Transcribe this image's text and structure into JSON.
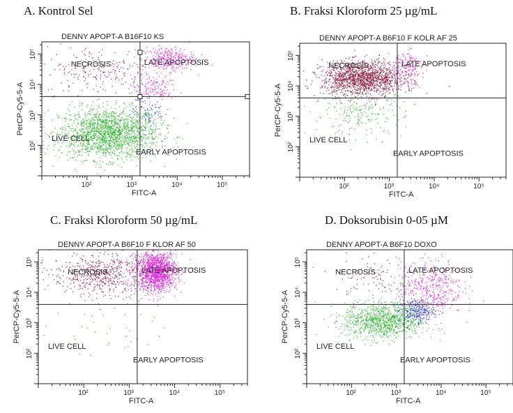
{
  "colors": {
    "live": "#22b322",
    "necrosis": "#8b1a3c",
    "late": "#e01ee0",
    "early": "#2a3fd6",
    "frame": "#222222",
    "text": "#222222"
  },
  "chart_data": [
    {
      "type": "scatter",
      "heading": "A.  Kontrol Sel",
      "title": "DENNY APOPT-A B16F10 KS",
      "xlabel": "FITC-A",
      "ylabel": "PerCP-Cy5-5-A",
      "x_scale": "log",
      "y_scale": "log",
      "xlim": [
        10,
        400000
      ],
      "ylim": [
        10,
        250000
      ],
      "x_ticks": [
        {
          "value": 100,
          "label": "10²"
        },
        {
          "value": 1000,
          "label": "10³"
        },
        {
          "value": 10000,
          "label": "10⁴"
        },
        {
          "value": 100000,
          "label": "10⁵"
        }
      ],
      "y_ticks": [
        {
          "value": 100,
          "label": "10²"
        },
        {
          "value": 1000,
          "label": "10³"
        },
        {
          "value": 10000,
          "label": "10⁴"
        },
        {
          "value": 100000,
          "label": "10⁵"
        }
      ],
      "gate": {
        "x": 1500,
        "y": 4000
      },
      "gate_markers": true,
      "quadrant_labels": {
        "necrosis": "NECROSIS",
        "late": "LATE APOPTOSIS",
        "live": "LIVE CELL",
        "early": "EARLY APOPTOSIS"
      },
      "populations": [
        {
          "quadrant": "live",
          "n": 1700,
          "x_center": 300,
          "y_center": 250,
          "x_spread": 0.55,
          "y_spread": 0.42
        },
        {
          "quadrant": "necrosis",
          "n": 220,
          "x_center": 180,
          "y_center": 30000,
          "x_spread": 0.6,
          "y_spread": 0.4
        },
        {
          "quadrant": "late",
          "n": 300,
          "x_center": 6000,
          "y_center": 70000,
          "x_spread": 0.3,
          "y_spread": 0.2
        },
        {
          "quadrant": "late",
          "n": 120,
          "x_center": 3000,
          "y_center": 8000,
          "x_spread": 0.25,
          "y_spread": 0.2
        },
        {
          "quadrant": "early",
          "n": 90,
          "x_center": 2200,
          "y_center": 1500,
          "x_spread": 0.18,
          "y_spread": 0.3
        }
      ]
    },
    {
      "type": "scatter",
      "heading": "B. Fraksi Kloroform 25 µg/mL",
      "title": "DENNY APOPT-A B6F10 F KOLR AF 25",
      "xlabel": "FITC-A",
      "ylabel": "PerCP-Cy5-5-A",
      "x_scale": "log",
      "y_scale": "log",
      "xlim": [
        10,
        400000
      ],
      "ylim": [
        10,
        250000
      ],
      "x_ticks": [
        {
          "value": 100,
          "label": "10²"
        },
        {
          "value": 1000,
          "label": "10³"
        },
        {
          "value": 10000,
          "label": "10⁴"
        },
        {
          "value": 100000,
          "label": "10⁵"
        }
      ],
      "y_ticks": [
        {
          "value": 100,
          "label": "10²"
        },
        {
          "value": 1000,
          "label": "10³"
        },
        {
          "value": 10000,
          "label": "10⁴"
        },
        {
          "value": 100000,
          "label": "10⁵"
        }
      ],
      "gate": {
        "x": 1500,
        "y": 4000
      },
      "gate_markers": false,
      "quadrant_labels": {
        "necrosis": "NECROSIS",
        "late": "LATE APOPTOSIS",
        "live": "LIVE CELL",
        "early": "EARLY APOPTOSIS"
      },
      "populations": [
        {
          "quadrant": "necrosis",
          "n": 1500,
          "x_center": 250,
          "y_center": 18000,
          "x_spread": 0.45,
          "y_spread": 0.28
        },
        {
          "quadrant": "late",
          "n": 180,
          "x_center": 2200,
          "y_center": 40000,
          "x_spread": 0.2,
          "y_spread": 0.3
        },
        {
          "quadrant": "live",
          "n": 200,
          "x_center": 200,
          "y_center": 1200,
          "x_spread": 0.5,
          "y_spread": 0.35
        }
      ]
    },
    {
      "type": "scatter",
      "heading": "C. Fraksi Kloroform 50 µg/mL",
      "title": "DENNY APOPT-A B6F10 F KLOR AF 50",
      "xlabel": "FITC-A",
      "ylabel": "PerCP-Cy5-5-A",
      "x_scale": "log",
      "y_scale": "log",
      "xlim": [
        10,
        400000
      ],
      "ylim": [
        10,
        250000
      ],
      "x_ticks": [
        {
          "value": 100,
          "label": "10²"
        },
        {
          "value": 1000,
          "label": "10³"
        },
        {
          "value": 10000,
          "label": "10⁴"
        },
        {
          "value": 100000,
          "label": "10⁵"
        }
      ],
      "y_ticks": [
        {
          "value": 100,
          "label": "10²"
        },
        {
          "value": 1000,
          "label": "10³"
        },
        {
          "value": 10000,
          "label": "10⁴"
        },
        {
          "value": 100000,
          "label": "10⁵"
        }
      ],
      "gate": {
        "x": 1500,
        "y": 4000
      },
      "gate_markers": false,
      "quadrant_labels": {
        "necrosis": "NECROSIS",
        "late": "LATE APOPTOSIS",
        "live": "LIVE CELL",
        "early": "EARLY APOPTOSIS"
      },
      "populations": [
        {
          "quadrant": "late",
          "n": 1300,
          "x_center": 4000,
          "y_center": 50000,
          "x_spread": 0.22,
          "y_spread": 0.33
        },
        {
          "quadrant": "necrosis",
          "n": 600,
          "x_center": 250,
          "y_center": 40000,
          "x_spread": 0.55,
          "y_spread": 0.35
        },
        {
          "quadrant": "live",
          "n": 40,
          "x_center": 300,
          "y_center": 600,
          "x_spread": 0.6,
          "y_spread": 0.5
        }
      ]
    },
    {
      "type": "scatter",
      "heading": "D. Doksorubisin 0-05 µM",
      "title": "DENNY APOPT-A B6F10 DOXO",
      "xlabel": "FITC-A",
      "ylabel": "PerCP-Cy5-5-A",
      "x_scale": "log",
      "y_scale": "log",
      "xlim": [
        10,
        400000
      ],
      "ylim": [
        10,
        250000
      ],
      "x_ticks": [
        {
          "value": 100,
          "label": "10²"
        },
        {
          "value": 1000,
          "label": "10³"
        },
        {
          "value": 10000,
          "label": "10⁴"
        },
        {
          "value": 100000,
          "label": "10⁵"
        }
      ],
      "y_ticks": [
        {
          "value": 100,
          "label": "10²"
        },
        {
          "value": 1000,
          "label": "10³"
        },
        {
          "value": 10000,
          "label": "10⁴"
        },
        {
          "value": 100000,
          "label": "10⁵"
        }
      ],
      "gate": {
        "x": 1500,
        "y": 4000
      },
      "gate_markers": false,
      "quadrant_labels": {
        "necrosis": "NECROSIS",
        "late": "LATE APOPTOSIS",
        "live": "LIVE CELL",
        "early": "EARLY APOPTOSIS"
      },
      "populations": [
        {
          "quadrant": "live",
          "n": 900,
          "x_center": 500,
          "y_center": 1200,
          "x_spread": 0.45,
          "y_spread": 0.3
        },
        {
          "quadrant": "early",
          "n": 250,
          "x_center": 2800,
          "y_center": 2500,
          "x_spread": 0.2,
          "y_spread": 0.18
        },
        {
          "quadrant": "late",
          "n": 400,
          "x_center": 6000,
          "y_center": 15000,
          "x_spread": 0.35,
          "y_spread": 0.45
        },
        {
          "quadrant": "necrosis",
          "n": 120,
          "x_center": 400,
          "y_center": 30000,
          "x_spread": 0.5,
          "y_spread": 0.4
        }
      ]
    }
  ]
}
